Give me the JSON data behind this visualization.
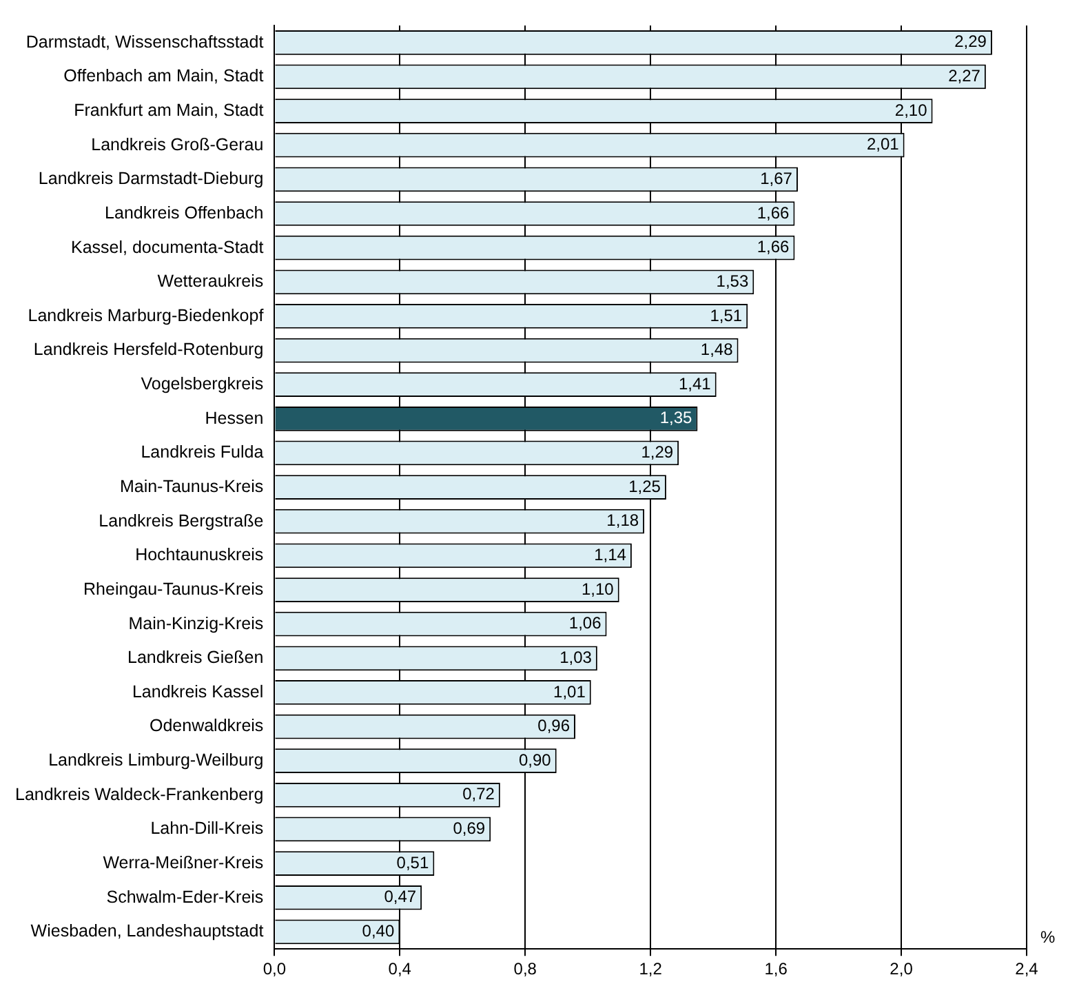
{
  "chart_data": {
    "type": "bar",
    "orientation": "horizontal",
    "xlabel": "%",
    "categories": [
      "Darmstadt, Wissenschaftsstadt",
      "Offenbach am Main, Stadt",
      "Frankfurt am Main, Stadt",
      "Landkreis Groß-Gerau",
      "Landkreis Darmstadt-Dieburg",
      "Landkreis Offenbach",
      "Kassel, documenta-Stadt",
      "Wetteraukreis",
      "Landkreis Marburg-Biedenkopf",
      "Landkreis Hersfeld-Rotenburg",
      "Vogelsbergkreis",
      "Hessen",
      "Landkreis Fulda",
      "Main-Taunus-Kreis",
      "Landkreis Bergstraße",
      "Hochtaunuskreis",
      "Rheingau-Taunus-Kreis",
      "Main-Kinzig-Kreis",
      "Landkreis Gießen",
      "Landkreis Kassel",
      "Odenwaldkreis",
      "Landkreis Limburg-Weilburg",
      "Landkreis Waldeck-Frankenberg",
      "Lahn-Dill-Kreis",
      "Werra-Meißner-Kreis",
      "Schwalm-Eder-Kreis",
      "Wiesbaden, Landeshauptstadt"
    ],
    "values": [
      2.29,
      2.27,
      2.1,
      2.01,
      1.67,
      1.66,
      1.66,
      1.53,
      1.51,
      1.48,
      1.41,
      1.35,
      1.29,
      1.25,
      1.18,
      1.14,
      1.1,
      1.06,
      1.03,
      1.01,
      0.96,
      0.9,
      0.72,
      0.69,
      0.51,
      0.47,
      0.4
    ],
    "value_labels": [
      "2,29",
      "2,27",
      "2,10",
      "2,01",
      "1,67",
      "1,66",
      "1,66",
      "1,53",
      "1,51",
      "1,48",
      "1,41",
      "1,35",
      "1,29",
      "1,25",
      "1,18",
      "1,14",
      "1,10",
      "1,06",
      "1,03",
      "1,01",
      "0,96",
      "0,90",
      "0,72",
      "0,69",
      "0,51",
      "0,47",
      "0,40"
    ],
    "colors": [
      "#dbeef4",
      "#dbeef4",
      "#dbeef4",
      "#dbeef4",
      "#dbeef4",
      "#dbeef4",
      "#dbeef4",
      "#dbeef4",
      "#dbeef4",
      "#dbeef4",
      "#dbeef4",
      "#215965",
      "#dbeef4",
      "#dbeef4",
      "#dbeef4",
      "#dbeef4",
      "#dbeef4",
      "#dbeef4",
      "#dbeef4",
      "#dbeef4",
      "#dbeef4",
      "#dbeef4",
      "#dbeef4",
      "#dbeef4",
      "#dbeef4",
      "#dbeef4",
      "#dbeef4"
    ],
    "xlim": [
      0,
      2.4
    ],
    "xticks": [
      {
        "value": 0,
        "label": "0,0"
      },
      {
        "value": 0.4,
        "label": "0,4"
      },
      {
        "value": 0.8,
        "label": "0,8"
      },
      {
        "value": 1.2,
        "label": "1,2"
      },
      {
        "value": 1.6,
        "label": "1,6"
      },
      {
        "value": 2.0,
        "label": "2,0"
      },
      {
        "value": 2.4,
        "label": "2,4"
      }
    ],
    "grid": "x"
  }
}
